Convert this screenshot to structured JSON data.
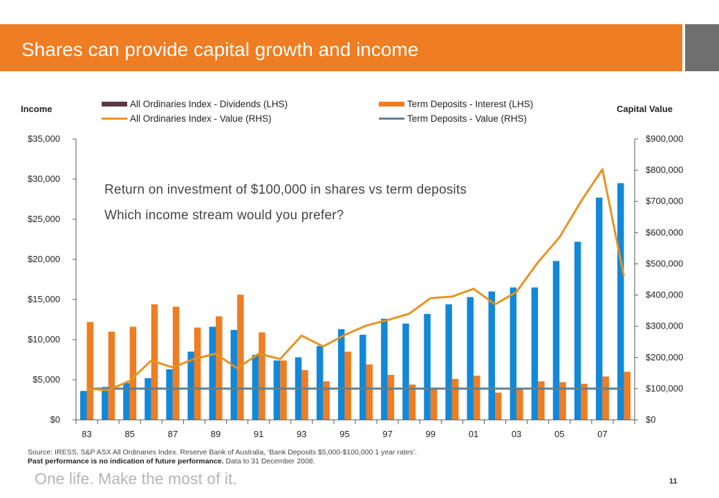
{
  "header": {
    "title": "Shares can provide capital growth and income"
  },
  "axes": {
    "left_title": "Income",
    "right_title": "Capital Value"
  },
  "legend": [
    {
      "label": "All Ordinaries Index - Dividends (LHS)",
      "color": "#5b3a44",
      "kind": "box"
    },
    {
      "label": "Term Deposits - Interest (LHS)",
      "color": "#ee7d23",
      "kind": "box"
    },
    {
      "label": "All Ordinaries Index - Value (RHS)",
      "color": "#e8921e",
      "kind": "line"
    },
    {
      "label": "Term Deposits - Value (RHS)",
      "color": "#5b7f95",
      "kind": "line"
    }
  ],
  "annotation": {
    "line1": "Return on investment of $100,000 in shares vs term deposits",
    "line2": "Which income stream would you prefer?"
  },
  "source": {
    "line1": "Source: IRESS, S&P ASX All Ordinaries Index. Reserve Bank of Australia, ‘Bank Deposits $5,000-$100,000 1 year rates’.",
    "bold": "Past performance is no indication of future performance.",
    "tail": " Data to 31 December 2008."
  },
  "footer": {
    "tagline": "One life. Make the most of it.",
    "page_number": "11"
  },
  "chart_data": {
    "type": "bar",
    "colors": {
      "dividends": "#1188d8",
      "interest": "#ee7d23",
      "shares_value": "#e8921e",
      "td_value": "#5b7f95"
    },
    "categories": [
      "83",
      "84",
      "85",
      "86",
      "87",
      "88",
      "89",
      "90",
      "91",
      "92",
      "93",
      "94",
      "95",
      "96",
      "97",
      "98",
      "99",
      "00",
      "01",
      "02",
      "03",
      "04",
      "05",
      "06",
      "07",
      "08"
    ],
    "x_tick_labels": [
      "83",
      "85",
      "87",
      "89",
      "91",
      "93",
      "95",
      "97",
      "99",
      "01",
      "03",
      "05",
      "07"
    ],
    "y_left": {
      "ylim": [
        0,
        35000
      ],
      "ticks": [
        "$0",
        "$5,000",
        "$10,000",
        "$15,000",
        "$20,000",
        "$25,000",
        "$30,000",
        "$35,000"
      ]
    },
    "y_right": {
      "ylim": [
        0,
        900000
      ],
      "ticks": [
        "$0",
        "$100,000",
        "$200,000",
        "$300,000",
        "$400,000",
        "$500,000",
        "$600,000",
        "$700,000",
        "$800,000",
        "$900,000"
      ]
    },
    "series": [
      {
        "name": "All Ordinaries Index - Dividends (LHS)",
        "axis": "left",
        "type": "bar",
        "values": [
          3600,
          4100,
          4600,
          5200,
          6300,
          8500,
          11600,
          11200,
          8100,
          7400,
          7800,
          9200,
          11300,
          10600,
          12600,
          12000,
          13200,
          14400,
          15300,
          16000,
          16500,
          16500,
          19800,
          22200,
          27700,
          29500
        ]
      },
      {
        "name": "Term Deposits - Interest (LHS)",
        "axis": "left",
        "type": "bar",
        "values": [
          12200,
          11000,
          11600,
          14400,
          14100,
          11500,
          12900,
          15600,
          10900,
          7400,
          6200,
          4800,
          8500,
          6900,
          5600,
          4400,
          3900,
          5100,
          5500,
          3400,
          3800,
          4800,
          4700,
          4500,
          5400,
          6000
        ]
      },
      {
        "name": "All Ordinaries Index - Value (RHS)",
        "axis": "right",
        "type": "line",
        "values": [
          100000,
          95000,
          125000,
          190000,
          168000,
          195000,
          212000,
          165000,
          212000,
          195000,
          270000,
          235000,
          272000,
          302000,
          320000,
          340000,
          390000,
          395000,
          420000,
          370000,
          410000,
          505000,
          585000,
          700000,
          803000,
          460000
        ]
      },
      {
        "name": "Term Deposits - Value (RHS)",
        "axis": "right",
        "type": "line",
        "values": [
          100000,
          100000,
          100000,
          100000,
          100000,
          100000,
          100000,
          100000,
          100000,
          100000,
          100000,
          100000,
          100000,
          100000,
          100000,
          100000,
          100000,
          100000,
          100000,
          100000,
          100000,
          100000,
          100000,
          100000,
          100000,
          100000
        ]
      }
    ]
  }
}
